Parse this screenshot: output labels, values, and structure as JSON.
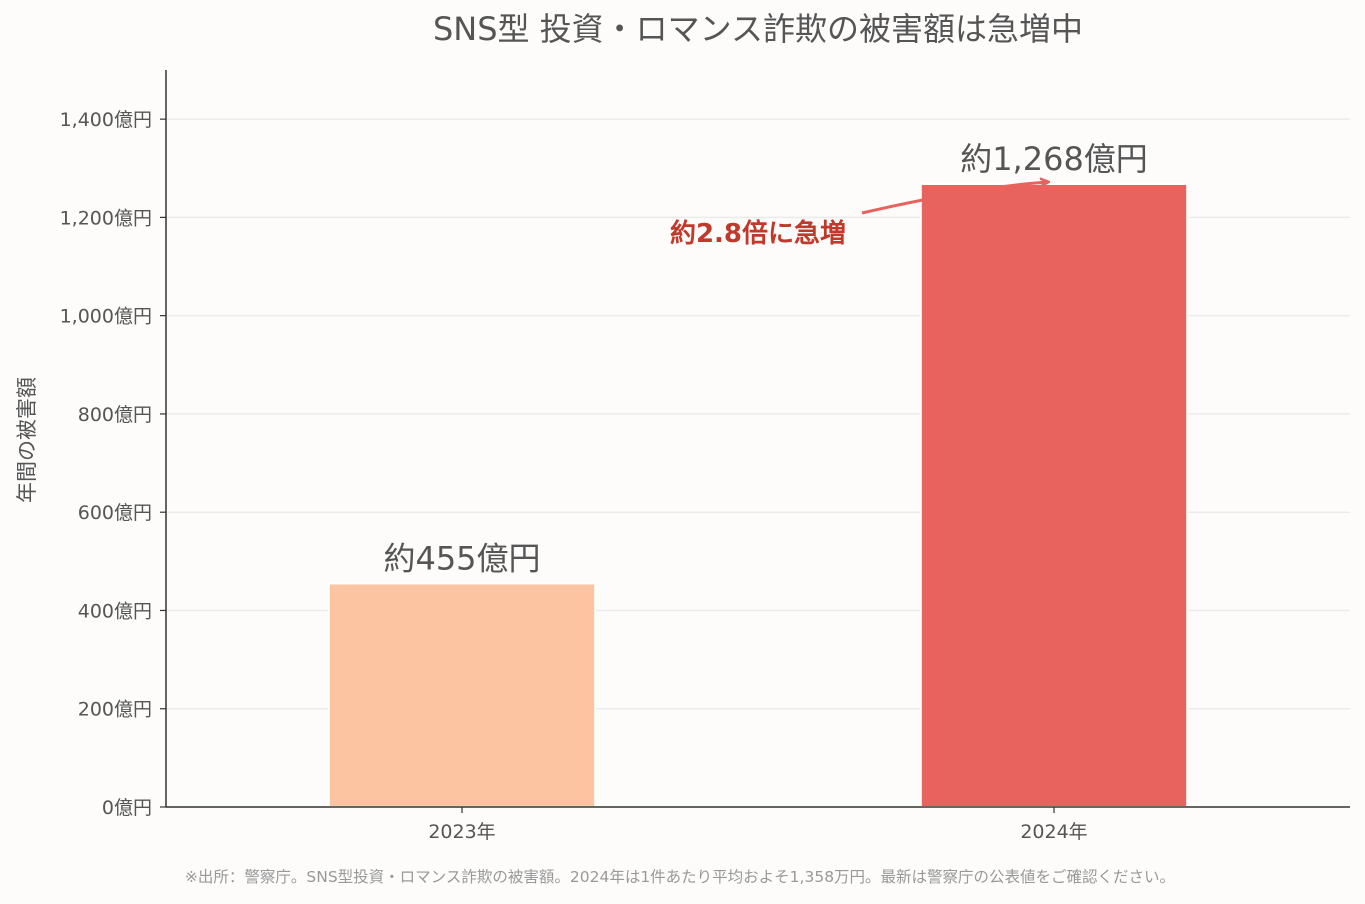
{
  "chart_data": {
    "type": "bar",
    "title": "SNS型 投資・ロマンス詐欺の被害額は急増中",
    "xlabel": "",
    "ylabel": "年間の被害額",
    "categories": [
      "2023年",
      "2024年"
    ],
    "values": [
      455,
      1268
    ],
    "data_labels": [
      "約455億円",
      "約1,268億円"
    ],
    "bar_colors": [
      "#fdc4a2",
      "#e8625e"
    ],
    "ylim": [
      0,
      1500
    ],
    "yticks": [
      0,
      200,
      400,
      600,
      800,
      1000,
      1200,
      1400
    ],
    "ytick_labels": [
      "0億円",
      "200億円",
      "400億円",
      "600億円",
      "800億円",
      "1,000億円",
      "1,200億円",
      "1,400億円"
    ],
    "grid": "horizontal",
    "annotation": {
      "text": "約2.8倍に急増",
      "color": "#c0392b"
    },
    "footnote": "※出所：警察庁。SNS型投資・ロマンス詐欺の被害額。2024年は1件あたり平均およそ1,358万円。最新は警察庁の公表値をご確認ください。"
  },
  "colors": {
    "background": "#fdfcfb",
    "text": "#555555",
    "grid": "#ebebeb",
    "axis": "#333333",
    "footnote": "#999999",
    "arrow": "#e8625e"
  }
}
